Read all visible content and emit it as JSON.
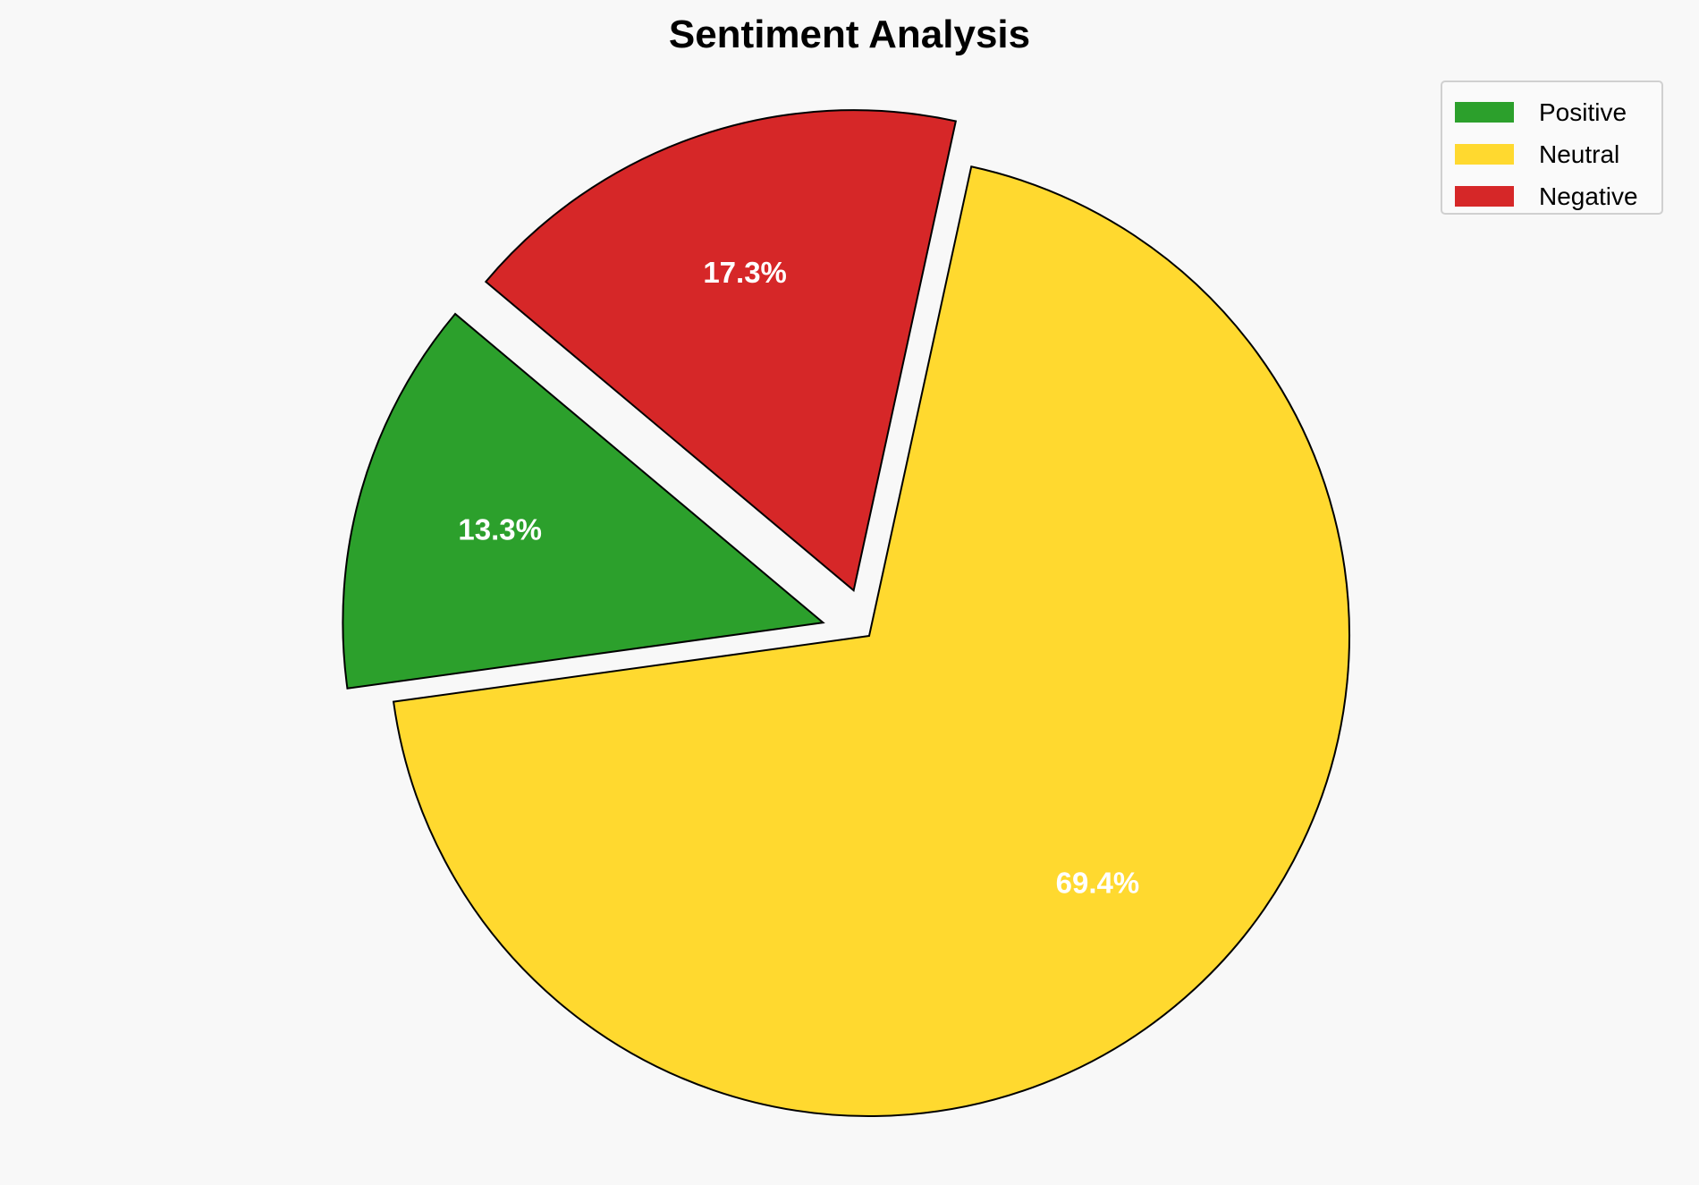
{
  "chart_data": {
    "type": "pie",
    "title": "Sentiment Analysis",
    "categories": [
      "Positive",
      "Neutral",
      "Negative"
    ],
    "values": [
      13.3,
      69.4,
      17.3
    ],
    "labels": [
      "13.3%",
      "69.4%",
      "17.3%"
    ],
    "colors": [
      "#2ca02c",
      "#ffd92f",
      "#d62728"
    ],
    "explode": [
      0.1,
      0,
      0.1
    ],
    "start_angle": 140,
    "direction": "counterclockwise",
    "legend_position": "top-right",
    "edge_color": "#000000",
    "label_color": "#ffffff"
  }
}
